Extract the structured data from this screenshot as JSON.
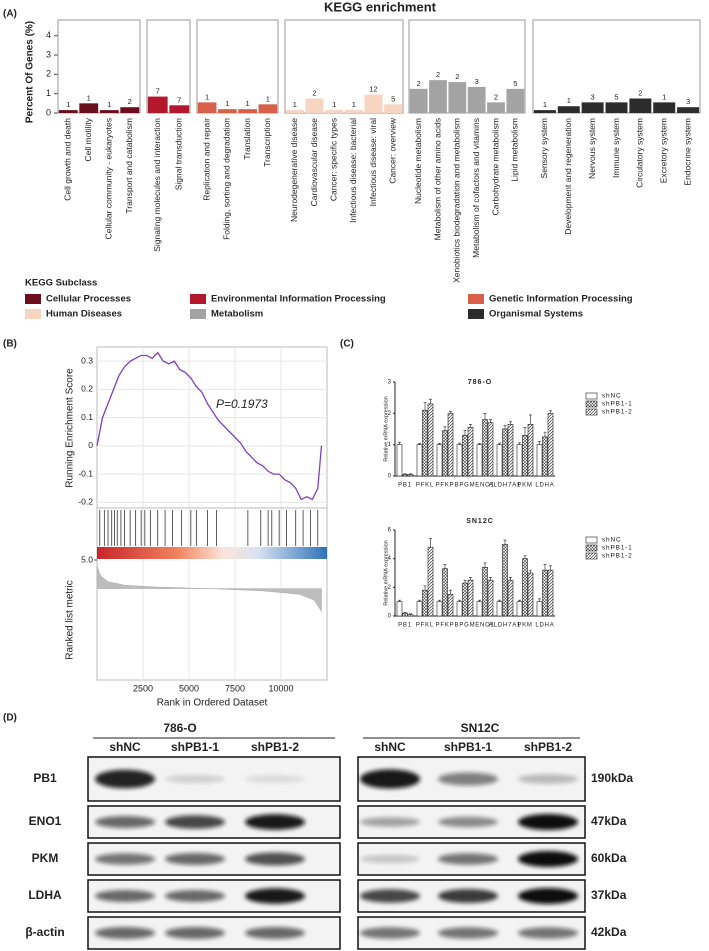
{
  "panel_labels": [
    "(A)",
    "(B)",
    "(C)",
    "(D)"
  ],
  "kegg": {
    "type": "bar",
    "title": "KEGG enrichment",
    "y_label": "Percent Of Genes (%)",
    "ylim": [
      0,
      4.4
    ],
    "yticks": [
      0,
      1,
      2,
      3,
      4
    ],
    "legend_title": "KEGG Subclass",
    "facets": [
      {
        "name": "Cellular Processes",
        "color": "#6b0f1e",
        "categories": [
          "Cell growth and death",
          "Cell motility",
          "Cellular community - eukaryotes",
          "Transport and catabolism"
        ],
        "values": [
          0.15,
          0.5,
          0.15,
          0.3
        ],
        "counts": [
          1,
          1,
          1,
          2
        ]
      },
      {
        "name": "Environmental Information Processing",
        "color": "#b3172c",
        "categories": [
          "Signaling molecules and interaction",
          "Signal transduction"
        ],
        "values": [
          0.85,
          0.4
        ],
        "counts": [
          7,
          7
        ]
      },
      {
        "name": "Genetic Information Processing",
        "color": "#d8604b",
        "categories": [
          "Replication and repair",
          "Folding, sorting and degradation",
          "Translation",
          "Transcription"
        ],
        "values": [
          0.55,
          0.2,
          0.2,
          0.45
        ],
        "counts": [
          1,
          1,
          1,
          1
        ]
      },
      {
        "name": "Human Diseases",
        "color": "#f8d5c0",
        "categories": [
          "Neurodegenerative disease",
          "Cardiovascular disease",
          "Cancer: specific types",
          "Infectious disease: bacterial",
          "Infectious disease: viral",
          "Cancer: overview"
        ],
        "values": [
          0.15,
          0.75,
          0.15,
          0.15,
          0.95,
          0.45
        ],
        "counts": [
          1,
          2,
          1,
          1,
          12,
          5
        ]
      },
      {
        "name": "Metabolism",
        "color": "#a3a3a3",
        "categories": [
          "Nucleotide metabolism",
          "Metabolism of other amino acids",
          "Xenobiotics biodegradation and metabolism",
          "Metabolism of cofactors and vitamins",
          "Carbohydrate metabolism",
          "Lipid metabolism"
        ],
        "values": [
          1.25,
          1.7,
          1.6,
          1.35,
          0.55,
          1.25
        ],
        "counts": [
          2,
          2,
          2,
          3,
          2,
          5
        ]
      },
      {
        "name": "Organismal Systems",
        "color": "#2c2c2c",
        "categories": [
          "Sensory system",
          "Development and regeneration",
          "Nervous system",
          "Immune system",
          "Circulatory system",
          "Excretory system",
          "Endocrine system"
        ],
        "values": [
          0.15,
          0.35,
          0.55,
          0.55,
          0.75,
          0.55,
          0.3
        ],
        "counts": [
          1,
          1,
          3,
          5,
          2,
          1,
          3
        ]
      }
    ]
  },
  "gsea": {
    "type": "line",
    "y_label": "Running Enrichment Score",
    "x_label": "Rank in Ordered Dataset",
    "annotation": "P=0.1973",
    "color": "#7e3fc0",
    "xlim": [
      0,
      12500
    ],
    "xticks": [
      2500,
      5000,
      7500,
      10000
    ],
    "ylim": [
      -0.22,
      0.35
    ],
    "yticks": [
      -0.2,
      -0.1,
      0,
      0.1,
      0.2,
      0.3
    ],
    "x": [
      0,
      300,
      600,
      900,
      1200,
      1500,
      1800,
      2100,
      2400,
      2700,
      3000,
      3300,
      3600,
      3900,
      4200,
      4500,
      4800,
      5100,
      5400,
      5700,
      6000,
      6300,
      6600,
      6900,
      7200,
      7500,
      7800,
      8100,
      8400,
      8700,
      9000,
      9300,
      9600,
      9900,
      10200,
      10500,
      10800,
      11100,
      11400,
      11700,
      12000,
      12200
    ],
    "values": [
      0,
      0.1,
      0.15,
      0.2,
      0.25,
      0.28,
      0.3,
      0.31,
      0.32,
      0.32,
      0.31,
      0.33,
      0.3,
      0.29,
      0.3,
      0.27,
      0.26,
      0.24,
      0.21,
      0.19,
      0.15,
      0.12,
      0.09,
      0.07,
      0.05,
      0.03,
      0.01,
      -0.02,
      -0.04,
      -0.06,
      -0.07,
      -0.09,
      -0.1,
      -0.1,
      -0.12,
      -0.13,
      -0.15,
      -0.19,
      -0.18,
      -0.19,
      -0.15,
      0
    ],
    "hits": [
      150,
      400,
      600,
      800,
      950,
      1100,
      1300,
      1500,
      1800,
      2100,
      2400,
      2600,
      2900,
      3300,
      3700,
      4100,
      4600,
      5100,
      5400,
      6000,
      6500,
      8200,
      8900,
      9300,
      9500,
      9900,
      10300,
      10800,
      11200,
      11600,
      12000
    ],
    "metric_label": "Ranked list metric",
    "metric_ylim": [
      -16,
      5
    ],
    "metric_yticks": [
      {
        "value": 5,
        "label": "5.0"
      }
    ],
    "metric_x": [
      0,
      200,
      600,
      1500,
      3000,
      6000,
      9000,
      11000,
      11800,
      12200
    ],
    "metric_values": [
      4,
      2.2,
      1.2,
      0.6,
      0.3,
      0,
      -0.4,
      -1,
      -2,
      -4
    ]
  },
  "qpcr": {
    "type": "bar",
    "y_label": "Relative mRNA expression",
    "charts": [
      {
        "title": "786-O",
        "categories": [
          "PB1",
          "PFKL",
          "PFKP",
          "BPGM",
          "ENO1",
          "ALDH7A1",
          "PKM",
          "LDHA"
        ],
        "ylim": [
          0,
          3
        ],
        "yticks": [
          0,
          1,
          2,
          3
        ],
        "series": [
          {
            "name": "shNC",
            "hatch": "none",
            "values": [
              1,
              1,
              1,
              1,
              1,
              1,
              1,
              1
            ],
            "errors": [
              0.08,
              0.04,
              0.04,
              0.05,
              0.04,
              0.05,
              0.06,
              0.1
            ]
          },
          {
            "name": "shPB1-1",
            "hatch": "cross",
            "values": [
              0.05,
              2.1,
              1.45,
              1.3,
              1.8,
              1.5,
              1.3,
              1.25
            ],
            "errors": [
              0.02,
              0.25,
              0.12,
              0.15,
              0.2,
              0.12,
              0.25,
              0.15
            ]
          },
          {
            "name": "shPB1-2",
            "hatch": "diagonal",
            "values": [
              0.05,
              2.3,
              2.0,
              1.55,
              1.7,
              1.65,
              1.65,
              2.0
            ],
            "errors": [
              0.02,
              0.15,
              0.06,
              0.1,
              0.1,
              0.08,
              0.3,
              0.08
            ]
          }
        ]
      },
      {
        "title": "SN12C",
        "categories": [
          "PB1",
          "PFKL",
          "PFKP",
          "BPGM",
          "ENO1",
          "ALDH7A1",
          "PKM",
          "LDHA"
        ],
        "ylim": [
          0,
          6
        ],
        "yticks": [
          0,
          2,
          4,
          6
        ],
        "series": [
          {
            "name": "shNC",
            "hatch": "none",
            "values": [
              1,
              1,
              1,
              1,
              1,
              1,
              1,
              1
            ],
            "errors": [
              0.1,
              0.1,
              0.1,
              0.1,
              0.1,
              0.1,
              0.1,
              0.2
            ]
          },
          {
            "name": "shPB1-1",
            "hatch": "cross",
            "values": [
              0.2,
              1.8,
              3.3,
              2.3,
              3.4,
              5.0,
              4.0,
              3.2
            ],
            "errors": [
              0.05,
              0.3,
              0.3,
              0.2,
              0.3,
              0.3,
              0.2,
              0.4
            ]
          },
          {
            "name": "shPB1-2",
            "hatch": "diagonal",
            "values": [
              0.1,
              4.8,
              1.5,
              2.5,
              2.5,
              2.5,
              3.0,
              3.2
            ],
            "errors": [
              0.05,
              0.6,
              0.3,
              0.2,
              0.2,
              0.2,
              0.2,
              0.3
            ]
          }
        ]
      }
    ]
  },
  "western": {
    "cell_lines": [
      {
        "name": "786-O",
        "lanes": [
          "shNC",
          "shPB1-1",
          "shPB1-2"
        ]
      },
      {
        "name": "SN12C",
        "lanes": [
          "shNC",
          "shPB1-1",
          "shPB1-2"
        ]
      }
    ],
    "rows": [
      {
        "protein": "PB1",
        "size": "190kDa"
      },
      {
        "protein": "ENO1",
        "size": "47kDa"
      },
      {
        "protein": "PKM",
        "size": "60kDa"
      },
      {
        "protein": "LDHA",
        "size": "37kDa"
      },
      {
        "protein": "β-actin",
        "size": "42kDa"
      }
    ]
  }
}
